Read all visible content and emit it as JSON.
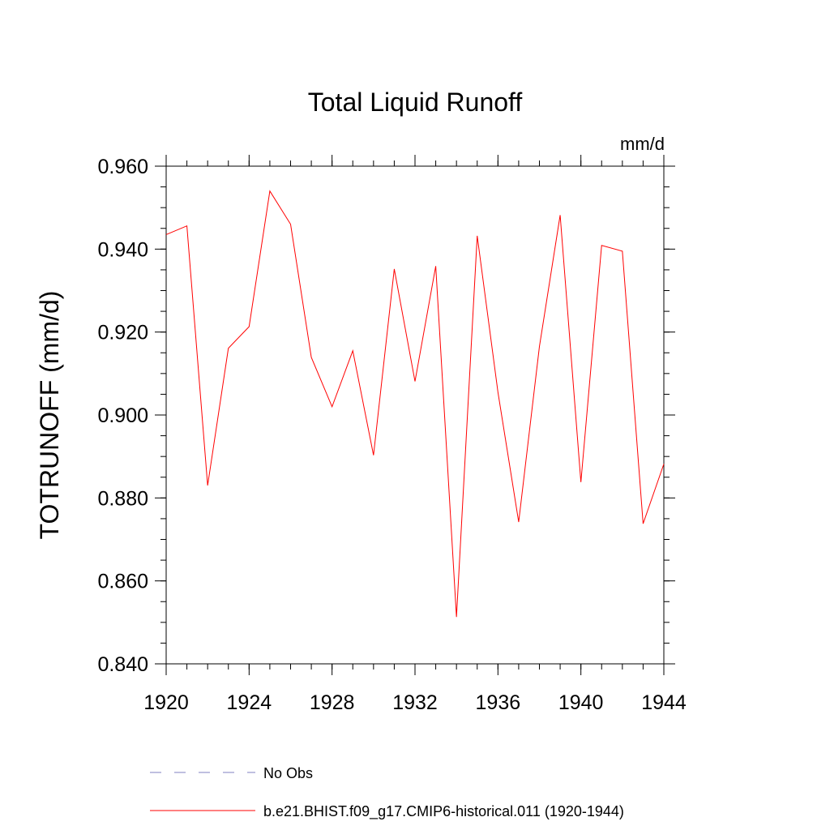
{
  "colors": {
    "series": "#ff0000",
    "obs": "#8080c0",
    "axis": "#000000"
  },
  "chart_data": {
    "type": "line",
    "title": "Total Liquid Runoff",
    "units": "mm/d",
    "ylabel": "TOTRUNOFF  (mm/d)",
    "xlabel": "",
    "xlim": [
      1920,
      1944
    ],
    "ylim": [
      0.84,
      0.96
    ],
    "x_ticks": [
      1920,
      1924,
      1928,
      1932,
      1936,
      1940,
      1944
    ],
    "x_tick_labels": [
      "1920",
      "1924",
      "1928",
      "1932",
      "1936",
      "1940",
      "1944"
    ],
    "y_ticks": [
      0.84,
      0.86,
      0.88,
      0.9,
      0.92,
      0.94,
      0.96
    ],
    "y_tick_labels": [
      "0.840",
      "0.860",
      "0.880",
      "0.900",
      "0.920",
      "0.940",
      "0.960"
    ],
    "grid": false,
    "legend_position": "bottom",
    "series": [
      {
        "name": "b.e21.BHIST.f09_g17.CMIP6-historical.011 (1920-1944)",
        "style": "solid",
        "x": [
          1920,
          1921,
          1922,
          1923,
          1924,
          1925,
          1926,
          1927,
          1928,
          1929,
          1930,
          1931,
          1932,
          1933,
          1934,
          1935,
          1936,
          1937,
          1938,
          1939,
          1940,
          1941,
          1942,
          1943,
          1944
        ],
        "y": [
          0.9435,
          0.9456,
          0.883,
          0.9161,
          0.9213,
          0.954,
          0.946,
          0.9139,
          0.902,
          0.9155,
          0.8903,
          0.9352,
          0.9081,
          0.9359,
          0.8513,
          0.9432,
          0.9055,
          0.8742,
          0.9165,
          0.9482,
          0.8838,
          0.9409,
          0.9395,
          0.8738,
          0.8882
        ]
      }
    ],
    "legend": [
      {
        "label": "No Obs",
        "style": "dashed",
        "color": "#8080c0"
      },
      {
        "label": "b.e21.BHIST.f09_g17.CMIP6-historical.011 (1920-1944)",
        "style": "solid",
        "color": "#ff0000"
      }
    ]
  }
}
